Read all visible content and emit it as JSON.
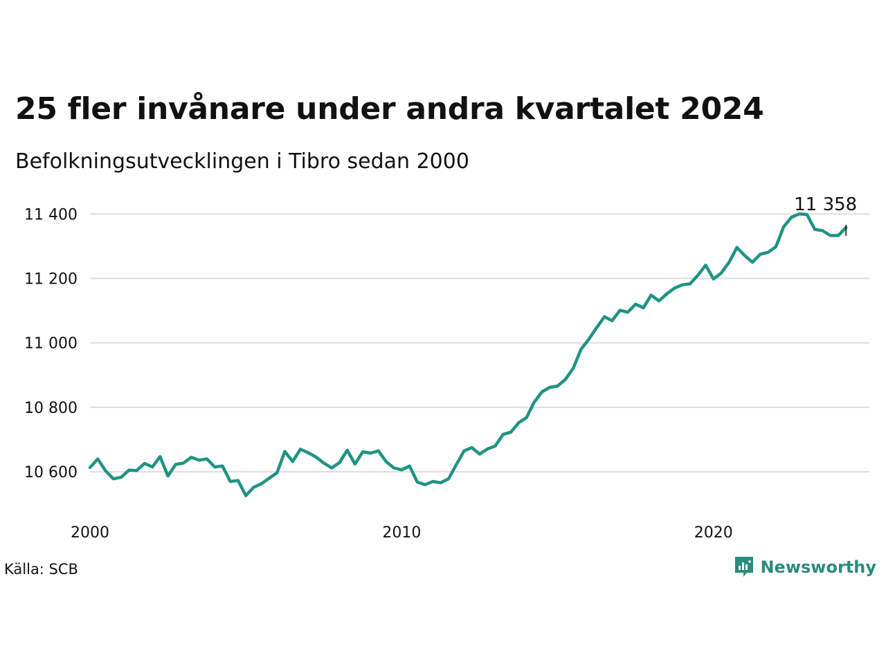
{
  "title": "25 fler invånare under andra kvartalet 2024",
  "subtitle": "Befolkningsutvecklingen i Tibro sedan 2000",
  "source": "Källa: SCB",
  "brand": {
    "name": "Newsworthy",
    "icon": "newsworthy-logo-icon",
    "color": "#2a8c7a"
  },
  "colors": {
    "line": "#1f9382",
    "grid": "#dddddd",
    "text": "#111111"
  },
  "chart_data": {
    "type": "line",
    "title": "25 fler invånare under andra kvartalet 2024",
    "subtitle": "Befolkningsutvecklingen i Tibro sedan 2000",
    "xlabel": "",
    "ylabel": "",
    "x_tick_labels": [
      "2000",
      "2010",
      "2020"
    ],
    "y_tick_labels": [
      "10 600",
      "10 800",
      "11 000",
      "11 200",
      "11 400"
    ],
    "y_ticks": [
      10600,
      10800,
      11000,
      11200,
      11400
    ],
    "ylim": [
      10465,
      11420
    ],
    "xlim": [
      "2000-Q1",
      "2025-Q1"
    ],
    "grid": true,
    "legend": "none",
    "annotation": {
      "text": "11 358",
      "x": "2024-Q2",
      "y": 11358
    },
    "x": [
      "2000-Q1",
      "2000-Q2",
      "2000-Q3",
      "2000-Q4",
      "2001-Q1",
      "2001-Q2",
      "2001-Q3",
      "2001-Q4",
      "2002-Q1",
      "2002-Q2",
      "2002-Q3",
      "2002-Q4",
      "2003-Q1",
      "2003-Q2",
      "2003-Q3",
      "2003-Q4",
      "2004-Q1",
      "2004-Q2",
      "2004-Q3",
      "2004-Q4",
      "2005-Q1",
      "2005-Q2",
      "2005-Q3",
      "2005-Q4",
      "2006-Q1",
      "2006-Q2",
      "2006-Q3",
      "2006-Q4",
      "2007-Q1",
      "2007-Q2",
      "2007-Q3",
      "2007-Q4",
      "2008-Q1",
      "2008-Q2",
      "2008-Q3",
      "2008-Q4",
      "2009-Q1",
      "2009-Q2",
      "2009-Q3",
      "2009-Q4",
      "2010-Q1",
      "2010-Q2",
      "2010-Q3",
      "2010-Q4",
      "2011-Q1",
      "2011-Q2",
      "2011-Q3",
      "2011-Q4",
      "2012-Q1",
      "2012-Q2",
      "2012-Q3",
      "2012-Q4",
      "2013-Q1",
      "2013-Q2",
      "2013-Q3",
      "2013-Q4",
      "2014-Q1",
      "2014-Q2",
      "2014-Q3",
      "2014-Q4",
      "2015-Q1",
      "2015-Q2",
      "2015-Q3",
      "2015-Q4",
      "2016-Q1",
      "2016-Q2",
      "2016-Q3",
      "2016-Q4",
      "2017-Q1",
      "2017-Q2",
      "2017-Q3",
      "2017-Q4",
      "2018-Q1",
      "2018-Q2",
      "2018-Q3",
      "2018-Q4",
      "2019-Q1",
      "2019-Q2",
      "2019-Q3",
      "2019-Q4",
      "2020-Q1",
      "2020-Q2",
      "2020-Q3",
      "2020-Q4",
      "2021-Q1",
      "2021-Q2",
      "2021-Q3",
      "2021-Q4",
      "2022-Q1",
      "2022-Q2",
      "2022-Q3",
      "2022-Q4",
      "2023-Q1",
      "2023-Q2",
      "2023-Q3",
      "2023-Q4",
      "2024-Q1",
      "2024-Q2"
    ],
    "series": [
      {
        "values": [
          10613,
          10640,
          10603,
          10578,
          10583,
          10605,
          10604,
          10626,
          10615,
          10647,
          10587,
          10623,
          10627,
          10645,
          10636,
          10640,
          10615,
          10618,
          10570,
          10573,
          10526,
          10552,
          10563,
          10580,
          10597,
          10663,
          10632,
          10670,
          10659,
          10646,
          10627,
          10612,
          10628,
          10667,
          10624,
          10662,
          10658,
          10665,
          10631,
          10612,
          10606,
          10618,
          10568,
          10560,
          10570,
          10566,
          10578,
          10622,
          10665,
          10675,
          10655,
          10671,
          10680,
          10716,
          10723,
          10752,
          10768,
          10816,
          10848,
          10862,
          10866,
          10887,
          10921,
          10980,
          11011,
          11047,
          11081,
          11069,
          11101,
          11095,
          11120,
          11109,
          11148,
          11130,
          11152,
          11170,
          11180,
          11183,
          11210,
          11241,
          11198,
          11217,
          11250,
          11296,
          11271,
          11250,
          11275,
          11281,
          11298,
          11360,
          11390,
          11400,
          11398,
          11352,
          11348,
          11333,
          11333,
          11358
        ]
      }
    ]
  }
}
